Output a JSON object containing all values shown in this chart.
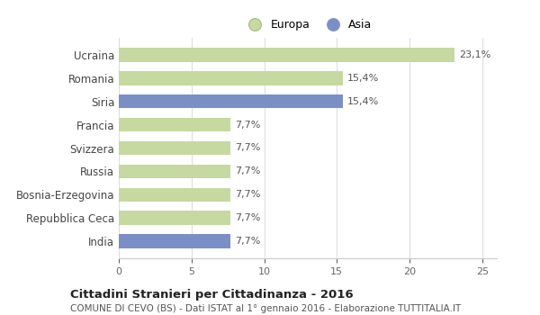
{
  "categories": [
    "Ucraina",
    "Romania",
    "Siria",
    "Francia",
    "Svizzera",
    "Russia",
    "Bosnia-Erzegovina",
    "Repubblica Ceca",
    "India"
  ],
  "values": [
    23.1,
    15.4,
    15.4,
    7.7,
    7.7,
    7.7,
    7.7,
    7.7,
    7.7
  ],
  "labels": [
    "23,1%",
    "15,4%",
    "15,4%",
    "7,7%",
    "7,7%",
    "7,7%",
    "7,7%",
    "7,7%",
    "7,7%"
  ],
  "colors": [
    "#c5d9a0",
    "#c5d9a0",
    "#7b8fc7",
    "#c5d9a0",
    "#c5d9a0",
    "#c5d9a0",
    "#c5d9a0",
    "#c5d9a0",
    "#7b8fc7"
  ],
  "europa_color": "#c5d9a0",
  "asia_color": "#7b8fc7",
  "europa_edge": "#aabb88",
  "asia_edge": "#8899cc",
  "xlim": [
    0,
    26
  ],
  "xticks": [
    0,
    5,
    10,
    15,
    20,
    25
  ],
  "title": "Cittadini Stranieri per Cittadinanza - 2016",
  "subtitle": "COMUNE DI CEVO (BS) - Dati ISTAT al 1° gennaio 2016 - Elaborazione TUTTITALIA.IT",
  "background_color": "#ffffff",
  "bar_height": 0.6,
  "legend_europa": "Europa",
  "legend_asia": "Asia"
}
